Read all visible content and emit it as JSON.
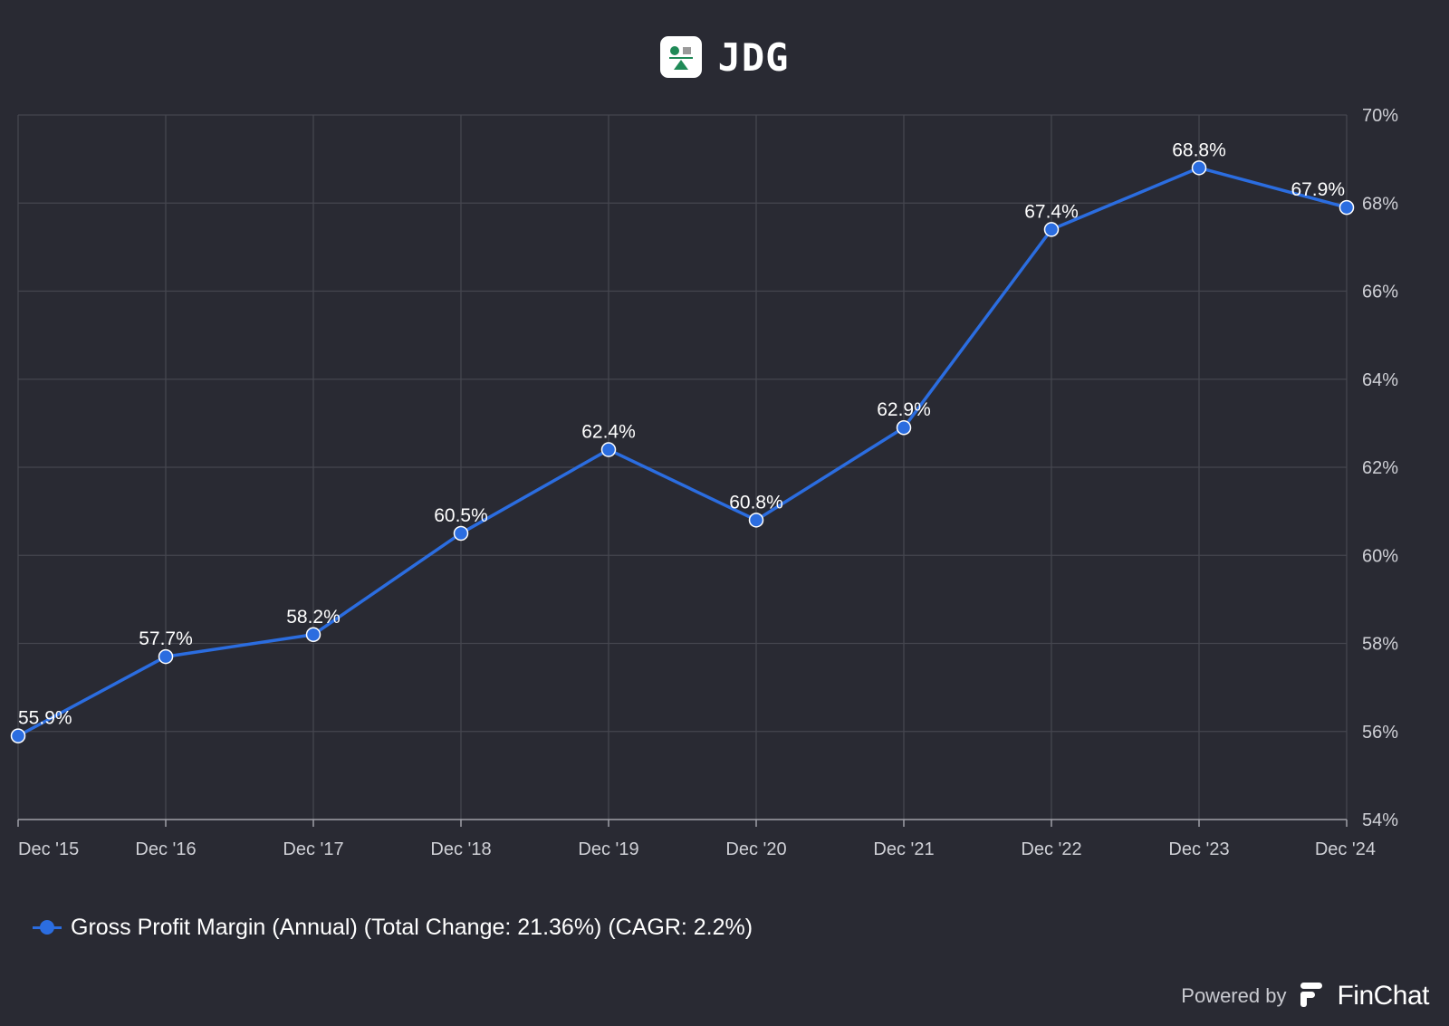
{
  "header": {
    "ticker": "JDG",
    "logo_icon": "jdg-company-logo-icon"
  },
  "chart_data": {
    "type": "line",
    "categories": [
      "Dec '15",
      "Dec '16",
      "Dec '17",
      "Dec '18",
      "Dec '19",
      "Dec '20",
      "Dec '21",
      "Dec '22",
      "Dec '23",
      "Dec '24"
    ],
    "series": [
      {
        "name": "Gross Profit Margin (Annual) (Total Change: 21.36%) (CAGR: 2.2%)",
        "values": [
          55.9,
          57.7,
          58.2,
          60.5,
          62.4,
          60.8,
          62.9,
          67.4,
          68.8,
          67.9
        ],
        "labels": [
          "55.9%",
          "57.7%",
          "58.2%",
          "60.5%",
          "62.4%",
          "60.8%",
          "62.9%",
          "67.4%",
          "68.8%",
          "67.9%"
        ],
        "color": "#2b6de0"
      }
    ],
    "ylim": [
      54,
      70
    ],
    "yticks": [
      54,
      56,
      58,
      60,
      62,
      64,
      66,
      68,
      70
    ],
    "ytick_labels": [
      "54%",
      "56%",
      "58%",
      "60%",
      "62%",
      "64%",
      "66%",
      "68%",
      "70%"
    ],
    "y_axis_side": "right",
    "grid": true,
    "legend_position": "bottom-left",
    "title": "",
    "xlabel": "",
    "ylabel": ""
  },
  "legend": {
    "text": "Gross Profit Margin (Annual) (Total Change: 21.36%) (CAGR: 2.2%)"
  },
  "footer": {
    "powered_by": "Powered by",
    "brand": "FinChat",
    "brand_icon": "finchat-logo-icon"
  },
  "colors": {
    "background": "#292a33",
    "series": "#2b6de0",
    "grid": "#45464f"
  }
}
